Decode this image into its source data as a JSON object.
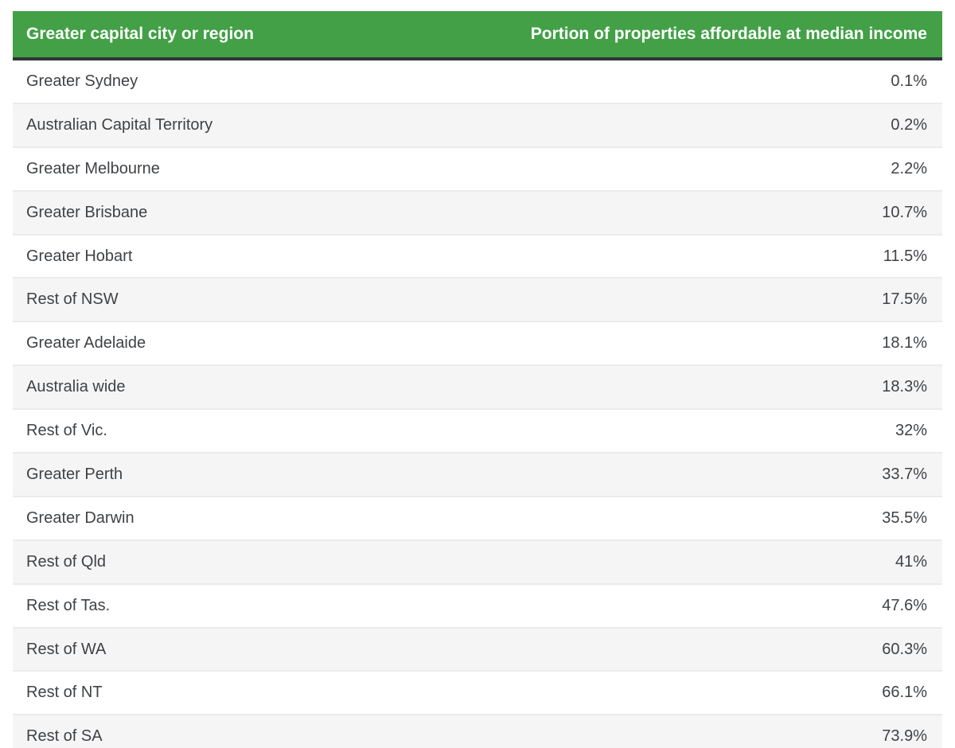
{
  "colors": {
    "header_bg": "#43a047",
    "header_text": "#ffffff",
    "header_border_bottom": "#2f3539",
    "row_bg": "#ffffff",
    "row_alt_bg": "#f5f5f5",
    "row_border": "#ebebeb",
    "body_text": "#3f4246"
  },
  "table": {
    "headers": [
      {
        "label": "Greater capital city or region"
      },
      {
        "label": "Portion of properties affordable at median income"
      }
    ],
    "rows": [
      {
        "region": "Greater Sydney",
        "value": "0.1%"
      },
      {
        "region": "Australian Capital Territory",
        "value": "0.2%"
      },
      {
        "region": "Greater Melbourne",
        "value": "2.2%"
      },
      {
        "region": "Greater Brisbane",
        "value": "10.7%"
      },
      {
        "region": "Greater Hobart",
        "value": "11.5%"
      },
      {
        "region": "Rest of NSW",
        "value": "17.5%"
      },
      {
        "region": "Greater Adelaide",
        "value": "18.1%"
      },
      {
        "region": "Australia wide",
        "value": "18.3%"
      },
      {
        "region": "Rest of Vic.",
        "value": "32%"
      },
      {
        "region": "Greater Perth",
        "value": "33.7%"
      },
      {
        "region": "Greater Darwin",
        "value": "35.5%"
      },
      {
        "region": "Rest of Qld",
        "value": "41%"
      },
      {
        "region": "Rest of Tas.",
        "value": "47.6%"
      },
      {
        "region": "Rest of WA",
        "value": "60.3%"
      },
      {
        "region": "Rest of NT",
        "value": "66.1%"
      },
      {
        "region": "Rest of SA",
        "value": "73.9%"
      }
    ]
  },
  "chart_data": {
    "type": "table",
    "title": "",
    "columns": [
      "Greater capital city or region",
      "Portion of properties affordable at median income"
    ],
    "categories": [
      "Greater Sydney",
      "Australian Capital Territory",
      "Greater Melbourne",
      "Greater Brisbane",
      "Greater Hobart",
      "Rest of NSW",
      "Greater Adelaide",
      "Australia wide",
      "Rest of Vic.",
      "Greater Perth",
      "Greater Darwin",
      "Rest of Qld",
      "Rest of Tas.",
      "Rest of WA",
      "Rest of NT",
      "Rest of SA"
    ],
    "values": [
      0.1,
      0.2,
      2.2,
      10.7,
      11.5,
      17.5,
      18.1,
      18.3,
      32,
      33.7,
      35.5,
      41,
      47.6,
      60.3,
      66.1,
      73.9
    ],
    "value_unit": "percent",
    "sort_order": "ascending by value",
    "layout": "striped rows, green header, right-aligned values"
  }
}
